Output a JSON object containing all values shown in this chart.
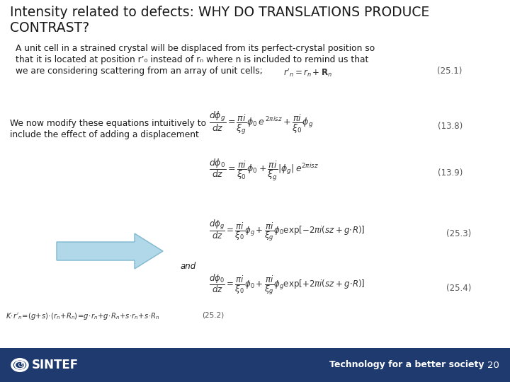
{
  "title_line1": "Intensity related to defects: WHY DO TRANSLATIONS PRODUCE",
  "title_line2": "CONTRAST?",
  "title_fontsize": 13.5,
  "title_color": "#1a1a1a",
  "body_text1_line1": "A unit cell in a strained crystal will be displaced from its perfect-crystal position so",
  "body_text1_line2": "that it is located at position r’₀ instead of rₙ where n is included to remind us that",
  "body_text1_line3": "we are considering scattering from an array of unit cells;",
  "body_text2_line1": "We now modify these equations intuitively to",
  "body_text2_line2": "include the effect of adding a displacement",
  "and_text": "and",
  "footer_bg": "#1e3a6e",
  "footer_text_left": "SINTEF",
  "footer_text_right": "Technology for a better society",
  "page_number": "20",
  "arrow_color": "#b0d8e8",
  "arrow_edge_color": "#80b8d0",
  "bg_color": "#ffffff",
  "text_color": "#1a1a1a",
  "eq_color": "#333333",
  "label_color": "#555555"
}
